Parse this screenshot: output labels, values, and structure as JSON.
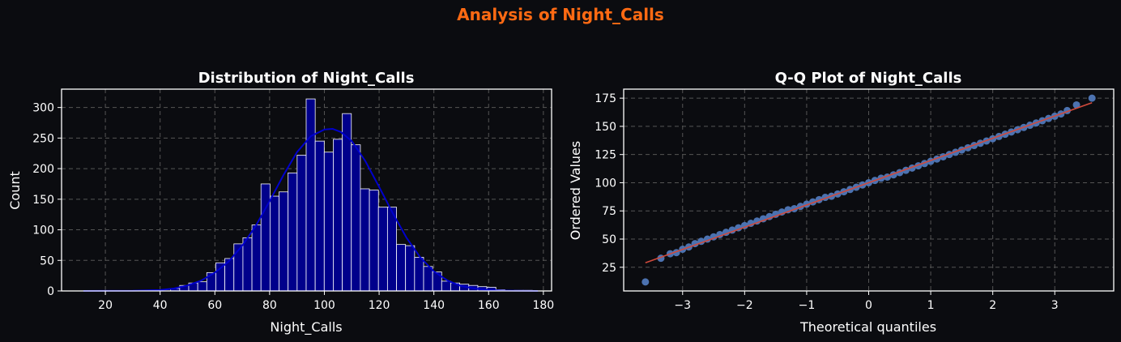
{
  "colors": {
    "background": "#0b0c10",
    "suptitle": "#ff6a13",
    "bar_fill": "#00008b",
    "bar_edge": "#ffffff",
    "kde": "#0000cd",
    "qq_points": "#4c72b0",
    "qq_line": "#d04a3c",
    "grid": "#555555",
    "text": "#ffffff"
  },
  "figure": {
    "title": "Analysis of Night_Calls"
  },
  "chart_data": [
    {
      "type": "bar",
      "title": "Distribution of Night_Calls",
      "xlabel": "Night_Calls",
      "ylabel": "Count",
      "xlim": [
        4,
        183
      ],
      "ylim": [
        0,
        330
      ],
      "xticks": [
        20,
        40,
        60,
        80,
        100,
        120,
        140,
        160,
        180
      ],
      "yticks": [
        0,
        50,
        100,
        150,
        200,
        250,
        300
      ],
      "grid": true,
      "bin_width": 3.3,
      "bins": [
        {
          "x": 45.5,
          "count": 4
        },
        {
          "x": 48.8,
          "count": 9
        },
        {
          "x": 52.1,
          "count": 13
        },
        {
          "x": 55.4,
          "count": 15
        },
        {
          "x": 58.7,
          "count": 30
        },
        {
          "x": 62.0,
          "count": 46
        },
        {
          "x": 65.3,
          "count": 53
        },
        {
          "x": 68.6,
          "count": 77
        },
        {
          "x": 71.9,
          "count": 87
        },
        {
          "x": 75.2,
          "count": 108
        },
        {
          "x": 78.5,
          "count": 175
        },
        {
          "x": 81.8,
          "count": 155
        },
        {
          "x": 85.1,
          "count": 162
        },
        {
          "x": 88.4,
          "count": 193
        },
        {
          "x": 91.7,
          "count": 222
        },
        {
          "x": 95.0,
          "count": 314
        },
        {
          "x": 98.3,
          "count": 245
        },
        {
          "x": 101.6,
          "count": 227
        },
        {
          "x": 104.9,
          "count": 248
        },
        {
          "x": 108.2,
          "count": 290
        },
        {
          "x": 111.5,
          "count": 239
        },
        {
          "x": 114.8,
          "count": 167
        },
        {
          "x": 118.1,
          "count": 165
        },
        {
          "x": 121.4,
          "count": 137
        },
        {
          "x": 124.7,
          "count": 137
        },
        {
          "x": 128.0,
          "count": 76
        },
        {
          "x": 131.3,
          "count": 74
        },
        {
          "x": 134.6,
          "count": 55
        },
        {
          "x": 137.9,
          "count": 40
        },
        {
          "x": 141.2,
          "count": 31
        },
        {
          "x": 144.5,
          "count": 16
        },
        {
          "x": 147.8,
          "count": 13
        },
        {
          "x": 151.1,
          "count": 11
        },
        {
          "x": 154.4,
          "count": 9
        },
        {
          "x": 157.7,
          "count": 7
        },
        {
          "x": 161.0,
          "count": 6
        },
        {
          "x": 164.3,
          "count": 2
        },
        {
          "x": 171.0,
          "count": 1
        },
        {
          "x": 174.3,
          "count": 1
        }
      ],
      "kde": {
        "x": [
          12,
          30,
          40,
          45,
          50,
          55,
          60,
          65,
          70,
          75,
          80,
          85,
          90,
          95,
          100,
          103,
          106,
          110,
          115,
          120,
          125,
          130,
          135,
          140,
          145,
          150,
          155,
          160,
          165,
          170,
          178
        ],
        "y": [
          0,
          0.3,
          1.5,
          4,
          9,
          17,
          30,
          48,
          74,
          107,
          147,
          189,
          227,
          253,
          264,
          265,
          260,
          245,
          212,
          170,
          127,
          87,
          55,
          32,
          17,
          8,
          4,
          1.5,
          0.6,
          0.2,
          0
        ]
      }
    },
    {
      "type": "scatter",
      "title": "Q-Q Plot of Night_Calls",
      "xlabel": "Theoretical quantiles",
      "ylabel": "Ordered Values",
      "xlim": [
        -3.95,
        3.95
      ],
      "ylim": [
        4,
        183
      ],
      "xticks": [
        -3,
        -2,
        -1,
        0,
        1,
        2,
        3
      ],
      "yticks": [
        25,
        50,
        75,
        100,
        125,
        150,
        175
      ],
      "grid": true,
      "fit_line": {
        "x": [
          -3.6,
          3.6
        ],
        "y": [
          29,
          171
        ]
      },
      "points": {
        "x": [
          -3.6,
          -3.35,
          -3.2,
          -3.1,
          -3.0,
          -2.9,
          -2.8,
          -2.7,
          -2.6,
          -2.5,
          -2.4,
          -2.3,
          -2.2,
          -2.1,
          -2.0,
          -1.9,
          -1.8,
          -1.7,
          -1.6,
          -1.5,
          -1.4,
          -1.3,
          -1.2,
          -1.1,
          -1.0,
          -0.9,
          -0.8,
          -0.7,
          -0.6,
          -0.5,
          -0.4,
          -0.3,
          -0.2,
          -0.1,
          0.0,
          0.1,
          0.2,
          0.3,
          0.4,
          0.5,
          0.6,
          0.7,
          0.8,
          0.9,
          1.0,
          1.1,
          1.2,
          1.3,
          1.4,
          1.5,
          1.6,
          1.7,
          1.8,
          1.9,
          2.0,
          2.1,
          2.2,
          2.3,
          2.4,
          2.5,
          2.6,
          2.7,
          2.8,
          2.9,
          3.0,
          3.1,
          3.2,
          3.35,
          3.6
        ],
        "y": [
          12,
          33,
          37,
          38,
          41,
          43,
          46,
          48,
          50,
          52,
          54,
          56,
          58,
          60,
          62,
          64,
          66,
          68,
          70,
          72,
          74,
          76,
          77,
          79,
          81,
          83,
          85,
          87,
          88,
          90,
          92,
          94,
          96,
          98,
          100,
          102,
          104,
          105,
          107,
          109,
          111,
          113,
          115,
          117,
          119,
          121,
          123,
          125,
          127,
          129,
          131,
          133,
          135,
          137,
          139,
          141,
          143,
          145,
          147,
          149,
          151,
          153,
          155,
          157,
          159,
          161,
          164,
          169,
          175
        ]
      }
    }
  ]
}
